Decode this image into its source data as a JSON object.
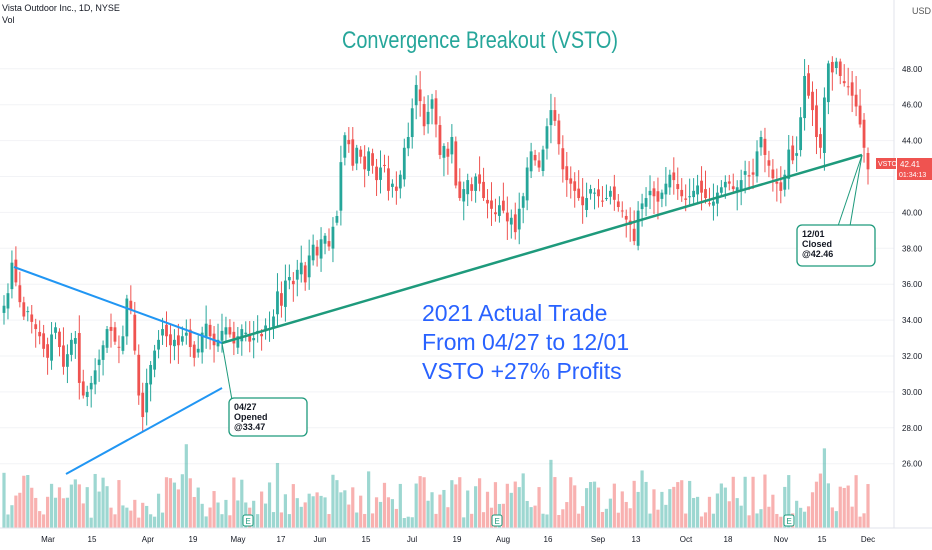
{
  "header": {
    "symbol_line": "Vista Outdoor Inc., 1D, NYSE",
    "vol_label": "Vol"
  },
  "currency": "USD",
  "title": "Convergence Breakout (VSTO)",
  "overlay_text": [
    "2021 Actual Trade",
    "From 04/27 to 12/01",
    "VSTO +27% Profits"
  ],
  "price_tag": {
    "symbol": "VSTO",
    "price": "42.41",
    "countdown": "01:34:13"
  },
  "open_note": {
    "date": "04/27",
    "status": "Opened",
    "price": "@33.47"
  },
  "close_note": {
    "date": "12/01",
    "status": "Closed",
    "price": "@42.46"
  },
  "colors": {
    "up": "#26a69a",
    "down": "#ef5350",
    "title": "#26a69a",
    "overlay": "#2962ff",
    "triangle": "#2196f3",
    "trendline": "#1e9a7c"
  },
  "chart_data": {
    "type": "candlestick",
    "y_axis_ticks": [
      26.0,
      28.0,
      30.0,
      32.0,
      34.0,
      36.0,
      38.0,
      40.0,
      42.0,
      44.0,
      46.0,
      48.0
    ],
    "x_axis_ticks": [
      "Mar",
      "15",
      "Apr",
      "19",
      "May",
      "17",
      "Jun",
      "15",
      "Jul",
      "19",
      "Aug",
      "16",
      "Sep",
      "13",
      "Oct",
      "18",
      "Nov",
      "15",
      "Dec"
    ],
    "ylim": [
      24.5,
      50
    ],
    "closes": [
      34.8,
      35.5,
      37.2,
      36.1,
      35.0,
      34.2,
      34.5,
      33.9,
      33.5,
      33.1,
      32.4,
      31.9,
      33.2,
      33.6,
      32.5,
      31.4,
      32.1,
      32.9,
      33.0,
      30.5,
      29.8,
      30.0,
      30.5,
      31.2,
      31.8,
      32.6,
      33.5,
      33.4,
      32.8,
      32.5,
      33.1,
      35.2,
      34.6,
      32.3,
      29.8,
      28.6,
      30.5,
      31.5,
      32.3,
      32.9,
      33.5,
      33.1,
      32.6,
      32.9,
      32.6,
      33.1,
      33.3,
      32.5,
      31.9,
      32.4,
      33.3,
      33.8,
      33.1,
      32.6,
      32.9,
      33.4,
      33.6,
      33.2,
      32.7,
      33.1,
      33.5,
      33.3,
      32.8,
      33.0,
      33.4,
      33.1,
      33.7,
      33.5,
      34.2,
      35.6,
      34.8,
      36.2,
      36.4,
      36.0,
      36.8,
      37.2,
      36.1,
      37.6,
      38.2,
      37.6,
      38.5,
      38.7,
      38.1,
      39.2,
      39.8,
      42.8,
      44.3,
      43.8,
      42.6,
      43.6,
      43.1,
      42.4,
      43.4,
      42.6,
      41.8,
      42.5,
      42.6,
      41.2,
      41.6,
      41.2,
      42.1,
      43.6,
      44.2,
      45.8,
      47.1,
      46.2,
      44.8,
      45.6,
      46.3,
      44.9,
      43.2,
      43.7,
      43.1,
      44.2,
      41.5,
      40.8,
      41.3,
      41.8,
      41.2,
      42.0,
      41.6,
      40.8,
      40.5,
      40.2,
      39.9,
      40.4,
      40.1,
      39.5,
      39.7,
      38.9,
      40.2,
      40.9,
      42.5,
      43.4,
      42.9,
      42.5,
      43.5,
      44.8,
      45.7,
      45.1,
      43.8,
      42.4,
      41.8,
      41.6,
      41.2,
      40.8,
      40.4,
      40.8,
      41.3,
      41.1,
      40.9,
      40.6,
      40.8,
      41.2,
      40.7,
      40.3,
      40.1,
      39.6,
      39.3,
      38.4,
      40.1,
      40.5,
      40.8,
      41.2,
      40.9,
      40.6,
      41.1,
      41.6,
      42.1,
      41.8,
      41.3,
      40.9,
      40.7,
      40.9,
      41.2,
      41.5,
      41.1,
      40.8,
      40.5,
      40.6,
      41.1,
      41.4,
      41.7,
      41.6,
      41.3,
      41.4,
      41.8,
      42.3,
      42.0,
      42.1,
      43.4,
      44.2,
      43.2,
      42.6,
      41.9,
      41.6,
      41.2,
      42.1,
      43.5,
      42.9,
      43.3,
      45.3,
      47.6,
      46.5,
      45.7,
      44.2,
      43.6,
      46.4,
      48.3,
      47.8,
      48.4,
      47.6,
      47.2,
      47.0,
      46.5,
      45.9,
      44.9,
      43.6,
      42.4
    ]
  }
}
